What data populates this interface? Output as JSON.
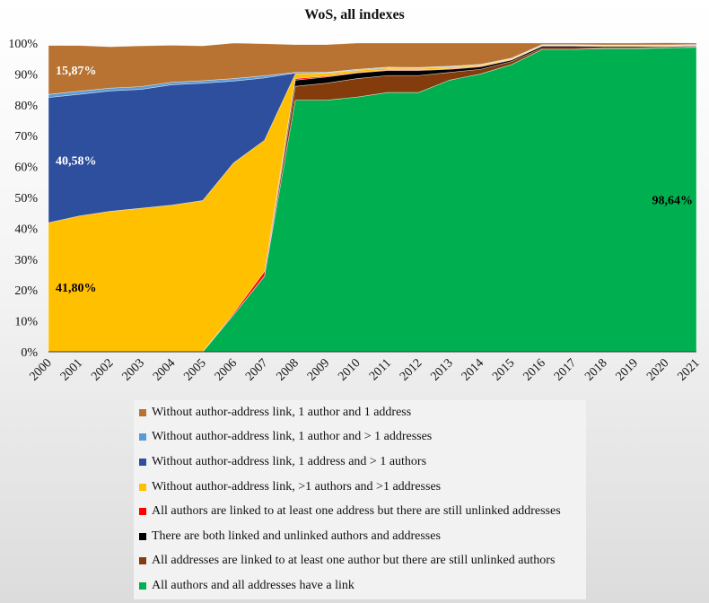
{
  "chart_data": {
    "type": "area",
    "stacked": true,
    "percent": true,
    "title": "WoS, all indexes",
    "categories": [
      "2000",
      "2001",
      "2002",
      "2003",
      "2004",
      "2005",
      "2006",
      "2007",
      "2008",
      "2009",
      "2010",
      "2011",
      "2012",
      "2013",
      "2014",
      "2015",
      "2016",
      "2017",
      "2018",
      "2019",
      "2020",
      "2021"
    ],
    "y_ticks": [
      "0%",
      "10%",
      "20%",
      "30%",
      "40%",
      "50%",
      "60%",
      "70%",
      "80%",
      "90%",
      "100%"
    ],
    "ylim": [
      0,
      100
    ],
    "grid": false,
    "legend_position": "bottom",
    "series": [
      {
        "name": "All authors and all addresses have a link",
        "color": "#00b050",
        "values": [
          0,
          0,
          0,
          0,
          0,
          0,
          12,
          24.5,
          81.5,
          81.5,
          82.5,
          84,
          84,
          88,
          90,
          93,
          97.9,
          97.9,
          98.2,
          98.2,
          98.4,
          98.64
        ]
      },
      {
        "name": "All addresses are linked to at least one author but there are still unlinked authors",
        "color": "#843c0c",
        "values": [
          0,
          0,
          0,
          0,
          0,
          0,
          0,
          0,
          4.5,
          5.5,
          6,
          5.5,
          5.5,
          2.5,
          1.5,
          1.0,
          0.5,
          0.5,
          0.3,
          0.3,
          0.2,
          0.1
        ]
      },
      {
        "name": "There are both linked and unlinked authors and addresses",
        "color": "#000000",
        "values": [
          0,
          0,
          0,
          0,
          0,
          0,
          0,
          0,
          2.0,
          2.0,
          1.8,
          1.6,
          1.6,
          1.0,
          0.8,
          0.5,
          0.6,
          0.6,
          0.4,
          0.4,
          0.3,
          0.3
        ]
      },
      {
        "name": "All authors are linked to at least one address but there are still unlinked addresses",
        "color": "#ff0000",
        "values": [
          0,
          0,
          0,
          0,
          0,
          0,
          0.5,
          1.5,
          0.5,
          0.3,
          0.2,
          0.2,
          0.2,
          0.2,
          0.2,
          0.1,
          0.1,
          0.1,
          0.1,
          0.1,
          0.1,
          0.1
        ]
      },
      {
        "name": "Without author-address link, >1 authors and >1 addresses",
        "color": "#ffc000",
        "values": [
          41.8,
          44,
          45.5,
          46.5,
          47.5,
          49,
          48.7,
          42.5,
          1.5,
          0.9,
          0.7,
          0.6,
          0.5,
          0.5,
          0.4,
          0.3,
          0.2,
          0.2,
          0.2,
          0.2,
          0.2,
          0.2
        ]
      },
      {
        "name": "Without author-address link, 1 address and > 1 authors",
        "color": "#2e4f9e",
        "values": [
          40.58,
          39.4,
          39,
          38.5,
          39,
          38,
          26.5,
          20.2,
          0.3,
          0.2,
          0.2,
          0.2,
          0.2,
          0.2,
          0.1,
          0.1,
          0.1,
          0.1,
          0.1,
          0.1,
          0.1,
          0.1
        ]
      },
      {
        "name": "Without author-address link, 1 author and > 1 addresses",
        "color": "#5b9bd5",
        "values": [
          1.0,
          1.0,
          0.9,
          0.9,
          0.8,
          0.8,
          0.8,
          0.7,
          0.2,
          0.1,
          0.1,
          0.1,
          0.1,
          0.1,
          0.1,
          0.1,
          0.1,
          0.1,
          0.1,
          0.1,
          0.1,
          0.1
        ]
      },
      {
        "name": "Without author-address link, 1 author and 1 address",
        "color": "#b87333",
        "values": [
          15.87,
          14.8,
          13.4,
          13.2,
          12.0,
          11.3,
          11.5,
          10.4,
          9.0,
          9.0,
          8.5,
          7.8,
          7.9,
          7.5,
          6.9,
          4.9,
          0.5,
          0.5,
          0.6,
          0.6,
          0.7,
          0.46
        ]
      }
    ],
    "data_labels": [
      {
        "text": "15,87%",
        "series": 7,
        "category": 0,
        "color": "#ffffff"
      },
      {
        "text": "40,58%",
        "series": 5,
        "category": 0,
        "color": "#ffffff"
      },
      {
        "text": "41,80%",
        "series": 4,
        "category": 0,
        "color": "#000000"
      },
      {
        "text": "98,64%",
        "series": 0,
        "category": 21,
        "color": "#000000"
      }
    ],
    "legend": [
      {
        "name": "Without author-address link, 1 author and 1 address",
        "color": "#b87333"
      },
      {
        "name": "Without author-address link, 1 author and > 1 addresses",
        "color": "#5b9bd5"
      },
      {
        "name": "Without author-address link, 1 address and > 1 authors",
        "color": "#2e4f9e"
      },
      {
        "name": "Without author-address link, >1 authors and >1 addresses",
        "color": "#ffc000"
      },
      {
        "name": "All authors are linked to at least one address but there are still unlinked addresses",
        "color": "#ff0000"
      },
      {
        "name": "There are both linked and unlinked authors and addresses",
        "color": "#000000"
      },
      {
        "name": "All addresses are linked to at least one author but there are still unlinked authors",
        "color": "#843c0c"
      },
      {
        "name": "All authors and all addresses have a link",
        "color": "#00b050"
      }
    ]
  }
}
